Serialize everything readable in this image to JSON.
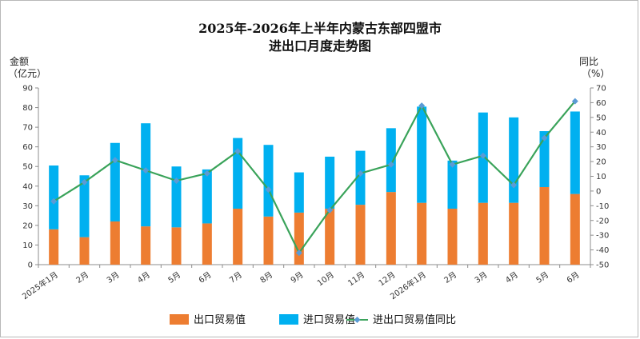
{
  "chart_data": {
    "type": "bar",
    "title_line1": "2025年-2026年上半年内蒙古东部四盟市",
    "title_line2": "进出口月度走势图",
    "ylabel_left_line1": "金额",
    "ylabel_left_line2": "（亿元）",
    "ylabel_right_line1": "同比",
    "ylabel_right_line2": "（%）",
    "ylim": [
      0,
      90
    ],
    "y_ticks": [
      0,
      10,
      20,
      30,
      40,
      50,
      60,
      70,
      80,
      90
    ],
    "y2lim": [
      -50,
      70
    ],
    "y2_ticks": [
      -50,
      -40,
      -30,
      -20,
      -10,
      0,
      10,
      20,
      30,
      40,
      50,
      60,
      70
    ],
    "categories": [
      "2025年1月",
      "2月",
      "3月",
      "4月",
      "5月",
      "6月",
      "7月",
      "8月",
      "9月",
      "10月",
      "11月",
      "12月",
      "2026年1月",
      "2月",
      "3月",
      "4月",
      "5月",
      "6月"
    ],
    "stacked": true,
    "series": [
      {
        "name": "出口贸易值",
        "type": "bar",
        "color": "#ed7d31",
        "values": [
          18,
          14,
          22,
          19.5,
          19,
          21,
          28.5,
          24.5,
          26.5,
          28.5,
          30.5,
          37,
          31.5,
          28.5,
          31.5,
          31.5,
          39.5,
          36
        ]
      },
      {
        "name": "进口贸易值",
        "type": "bar",
        "color": "#00b0f0",
        "values": [
          32.5,
          31.5,
          40,
          52.5,
          31,
          27.5,
          36,
          36.5,
          20.5,
          26.5,
          27.5,
          32.5,
          49,
          24.5,
          46,
          43.5,
          28.5,
          42
        ]
      },
      {
        "name": "进出口贸易值同比",
        "type": "line",
        "axis": "right",
        "color": "#3aa35a",
        "marker_color": "#5b9bd5",
        "values": [
          -7,
          6,
          21,
          14,
          7,
          12,
          27,
          1,
          -42,
          -13,
          12,
          18,
          58,
          18,
          24,
          4,
          36,
          61
        ]
      }
    ],
    "legend_position": "bottom",
    "grid": false
  }
}
